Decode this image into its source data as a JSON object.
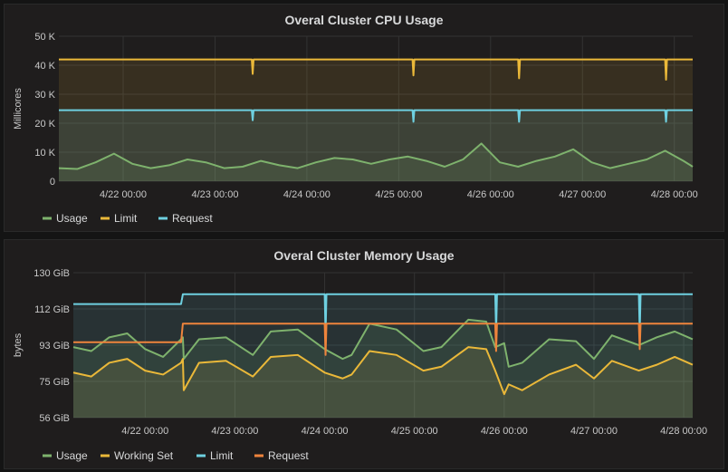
{
  "chart_data": [
    {
      "type": "line",
      "title": "Overal Cluster CPU Usage",
      "ylabel": "Millicores",
      "ylim": [
        0,
        50000
      ],
      "yticks": [
        "0",
        "10 K",
        "20 K",
        "30 K",
        "40 K",
        "50 K"
      ],
      "xticks": [
        "4/22 00:00",
        "4/23 00:00",
        "4/24 00:00",
        "4/25 00:00",
        "4/26 00:00",
        "4/27 00:00",
        "4/28 00:00"
      ],
      "xrange_days": [
        -0.7,
        6.2
      ],
      "grid": true,
      "legend_position": "bottom-left",
      "series": [
        {
          "name": "Usage",
          "color": "#7eb26d",
          "fill": true,
          "x": [
            -0.7,
            -0.5,
            -0.3,
            -0.1,
            0.1,
            0.3,
            0.5,
            0.7,
            0.9,
            1.1,
            1.3,
            1.5,
            1.7,
            1.9,
            2.1,
            2.3,
            2.5,
            2.7,
            2.9,
            3.1,
            3.3,
            3.5,
            3.7,
            3.9,
            4.1,
            4.3,
            4.5,
            4.7,
            4.9,
            5.1,
            5.3,
            5.5,
            5.7,
            5.9,
            6.1,
            6.2
          ],
          "values": [
            4500,
            4200,
            6500,
            9500,
            6000,
            4500,
            5500,
            7500,
            6500,
            4500,
            5000,
            7000,
            5500,
            4500,
            6500,
            8000,
            7500,
            6000,
            7500,
            8500,
            7000,
            5000,
            7500,
            13000,
            6500,
            5000,
            7000,
            8500,
            11000,
            6500,
            4500,
            6000,
            7500,
            10500,
            7000,
            5000
          ]
        },
        {
          "name": "Limit",
          "color": "#eab839",
          "fill": true,
          "x": [
            -0.7,
            1.4,
            1.41,
            1.42,
            3.15,
            3.16,
            3.17,
            4.3,
            4.31,
            4.32,
            5.9,
            5.91,
            5.92,
            6.2
          ],
          "values": [
            42000,
            42000,
            37000,
            42000,
            42000,
            36500,
            42000,
            42000,
            35500,
            42000,
            42000,
            35000,
            42000,
            42000
          ]
        },
        {
          "name": "Request",
          "color": "#6ed0e0",
          "fill": true,
          "x": [
            -0.7,
            1.4,
            1.41,
            1.42,
            3.15,
            3.16,
            3.17,
            4.3,
            4.31,
            4.32,
            5.9,
            5.91,
            5.92,
            6.2
          ],
          "values": [
            24500,
            24500,
            21000,
            24500,
            24500,
            20500,
            24500,
            24500,
            20500,
            24500,
            24500,
            20500,
            24500,
            24500
          ]
        }
      ]
    },
    {
      "type": "line",
      "title": "Overal Cluster Memory Usage",
      "ylabel": "bytes",
      "ylim": [
        56,
        130
      ],
      "yticks": [
        "56 GiB",
        "75 GiB",
        "93 GiB",
        "112 GiB",
        "130 GiB"
      ],
      "xticks": [
        "4/22 00:00",
        "4/23 00:00",
        "4/24 00:00",
        "4/25 00:00",
        "4/26 00:00",
        "4/27 00:00",
        "4/28 00:00"
      ],
      "xrange_days": [
        -0.8,
        6.1
      ],
      "grid": true,
      "legend_position": "bottom-left",
      "series": [
        {
          "name": "Usage",
          "color": "#7eb26d",
          "fill": true,
          "x": [
            -0.8,
            -0.6,
            -0.4,
            -0.2,
            0.0,
            0.2,
            0.4,
            0.42,
            0.43,
            0.6,
            0.9,
            1.2,
            1.4,
            1.7,
            2.0,
            2.2,
            2.3,
            2.5,
            2.8,
            3.1,
            3.3,
            3.6,
            3.8,
            3.9,
            4.0,
            4.05,
            4.2,
            4.5,
            4.8,
            5.0,
            5.2,
            5.5,
            5.7,
            5.9,
            6.1
          ],
          "values": [
            92,
            90,
            97,
            99,
            91,
            87,
            96,
            97,
            86,
            96,
            97,
            88,
            100,
            101,
            91,
            86,
            88,
            104,
            101,
            90,
            92,
            106,
            105,
            92,
            94,
            82,
            84,
            96,
            95,
            86,
            98,
            93,
            97,
            100,
            96
          ]
        },
        {
          "name": "Working Set",
          "color": "#eab839",
          "fill": true,
          "x": [
            -0.8,
            -0.6,
            -0.4,
            -0.2,
            0.0,
            0.2,
            0.4,
            0.42,
            0.43,
            0.6,
            0.9,
            1.2,
            1.4,
            1.7,
            2.0,
            2.2,
            2.3,
            2.5,
            2.8,
            3.1,
            3.3,
            3.6,
            3.8,
            3.9,
            4.0,
            4.05,
            4.2,
            4.5,
            4.8,
            5.0,
            5.2,
            5.5,
            5.7,
            5.9,
            6.1
          ],
          "values": [
            79,
            77,
            84,
            86,
            80,
            78,
            84,
            86,
            70,
            84,
            85,
            77,
            87,
            88,
            79,
            76,
            78,
            90,
            88,
            80,
            82,
            92,
            91,
            80,
            68,
            73,
            70,
            78,
            83,
            76,
            85,
            80,
            83,
            87,
            83
          ]
        },
        {
          "name": "Limit",
          "color": "#6ed0e0",
          "fill": true,
          "x": [
            -0.8,
            0.4,
            0.42,
            2.0,
            2.01,
            2.02,
            3.9,
            3.91,
            3.92,
            5.5,
            5.51,
            5.52,
            6.1
          ],
          "values": [
            114,
            114,
            119,
            119,
            99,
            119,
            119,
            100,
            119,
            119,
            100,
            119,
            119
          ]
        },
        {
          "name": "Request",
          "color": "#ef843c",
          "fill": false,
          "x": [
            -0.8,
            0.4,
            0.42,
            2.0,
            2.01,
            2.02,
            3.9,
            3.91,
            3.92,
            5.5,
            5.51,
            5.52,
            6.1
          ],
          "values": [
            94.5,
            94.5,
            104,
            104,
            88,
            104,
            104,
            90,
            104,
            104,
            91,
            104,
            104
          ]
        }
      ]
    }
  ]
}
